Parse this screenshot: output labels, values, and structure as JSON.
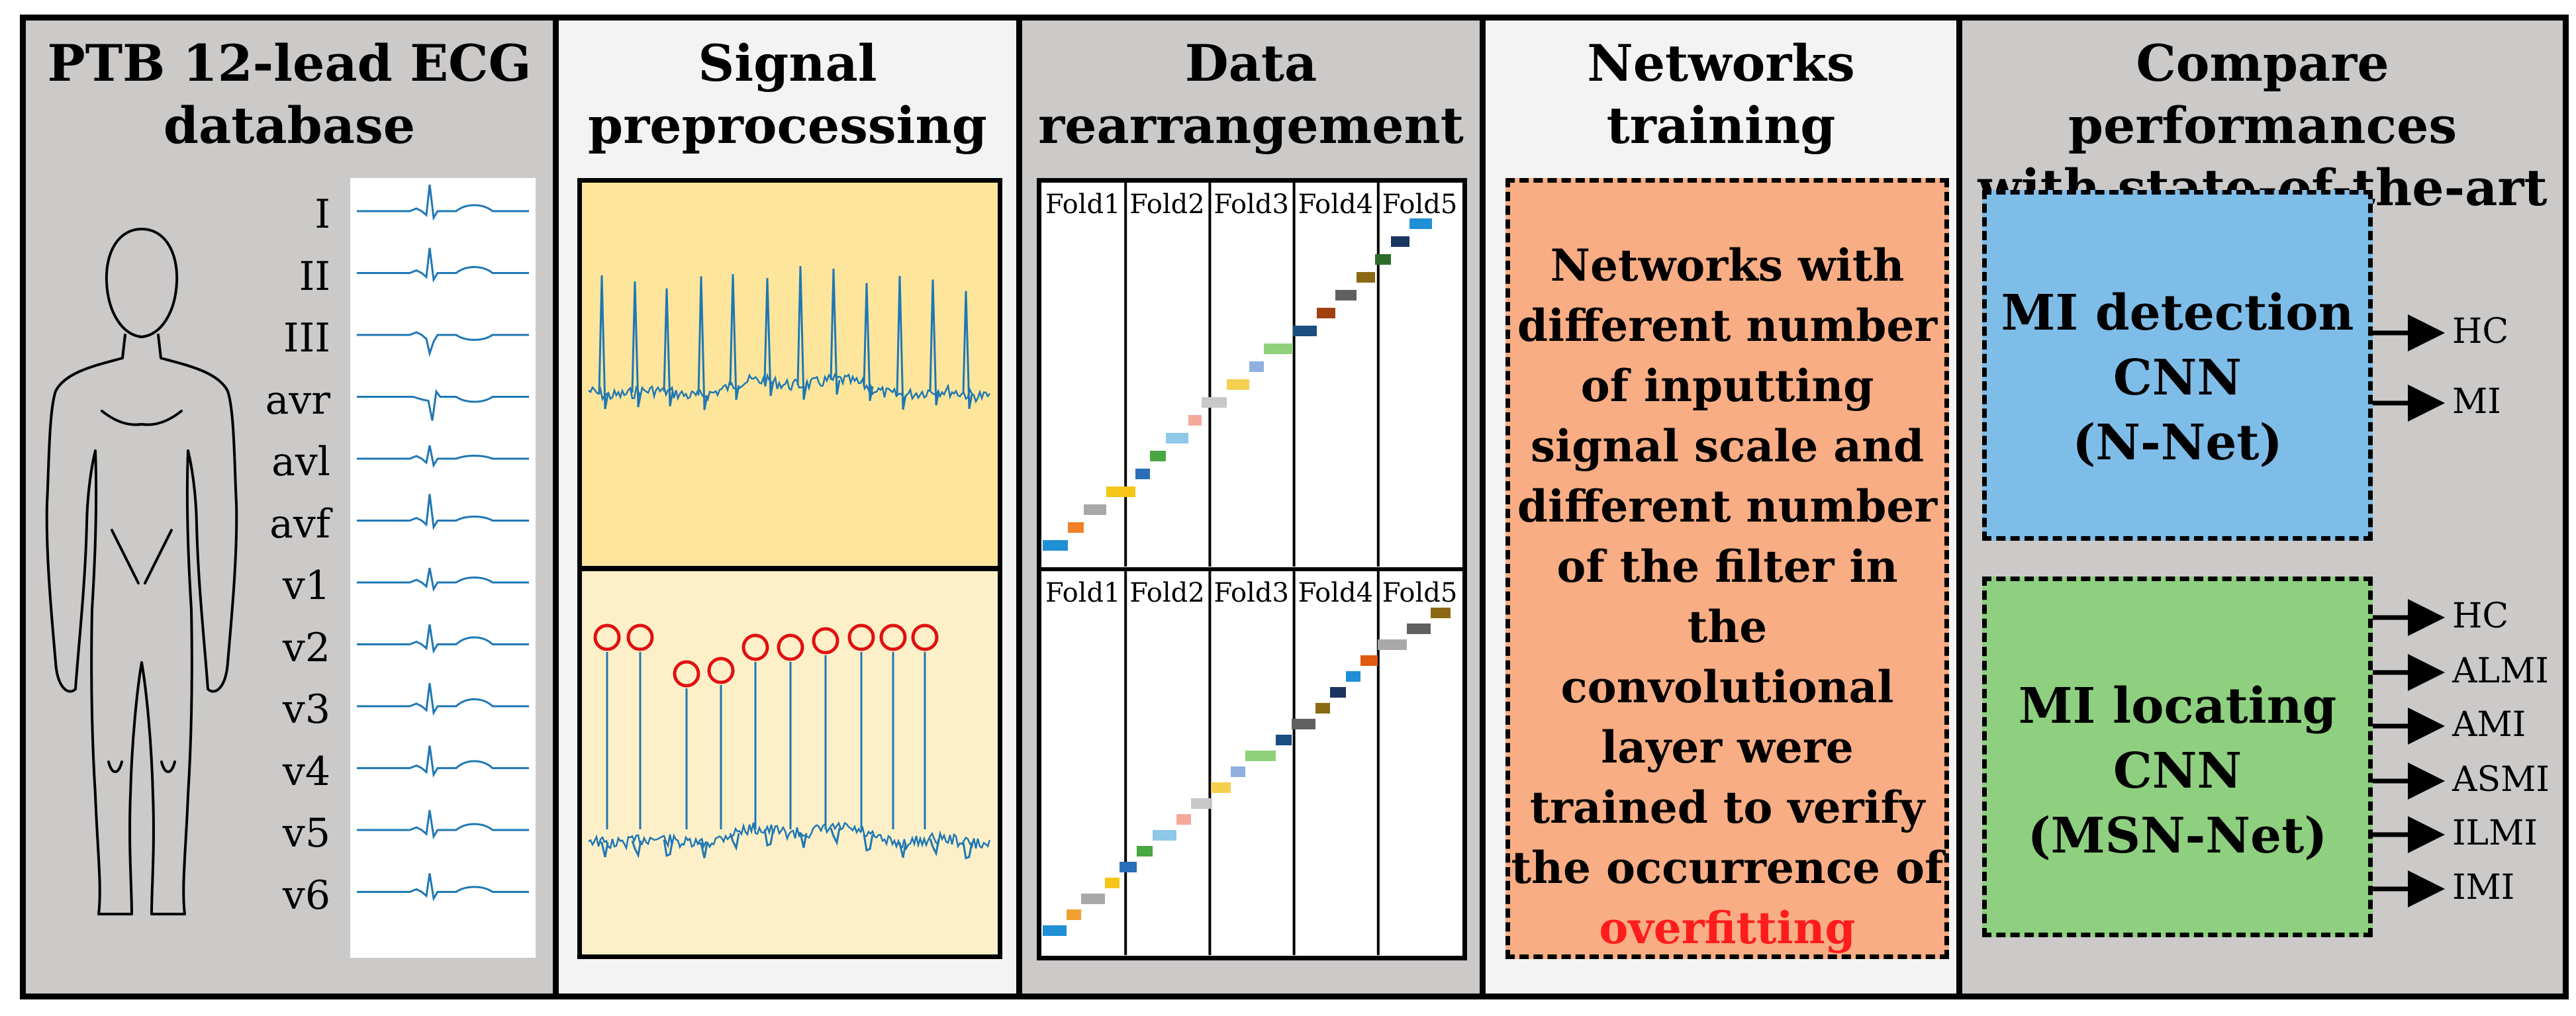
{
  "panels": {
    "database": {
      "title_line1": "PTB 12-lead ECG",
      "title_line2": "database",
      "leads": [
        "I",
        "II",
        "III",
        "avr",
        "avl",
        "avf",
        "v1",
        "v2",
        "v3",
        "v4",
        "v5",
        "v6"
      ]
    },
    "preprocessing": {
      "title_line1": "Signal",
      "title_line2": "preprocessing"
    },
    "rearrangement": {
      "title_line1": "Data",
      "title_line2": "rearrangement",
      "folds": [
        "Fold1",
        "Fold2",
        "Fold3",
        "Fold4",
        "Fold5"
      ]
    },
    "training": {
      "title_line1": "Networks",
      "title_line2": "training",
      "text_lines": [
        "Networks with",
        "different number",
        "of inputting",
        "signal scale and",
        "different number",
        "of the filter in the",
        "convolutional",
        "layer were",
        "trained to verify",
        "the occurrence of"
      ],
      "highlight": "overfitting",
      "highlight_color": "#ff1c1c"
    },
    "compare": {
      "title_line1": "Compare performances",
      "title_line2": "with state-of-the-art",
      "detection": {
        "line1": "MI detection",
        "line2": "CNN",
        "line3": "(N-Net)",
        "outputs": [
          "HC",
          "MI"
        ]
      },
      "locating": {
        "line1": "MI locating",
        "line2": "CNN",
        "line3": "(MSN-Net)",
        "outputs": [
          "HC",
          "ALMI",
          "AMI",
          "ASMI",
          "ILMI",
          "IMI"
        ]
      }
    }
  },
  "colors": {
    "ecg_trace": "#1f77b4",
    "preproc_top": "#fde69c",
    "preproc_bottom": "#fdf0c8",
    "training_box": "#f9ad84",
    "detection_box": "#7fbde9",
    "locating_box": "#8ed07f",
    "peak_marker": "#e01010"
  }
}
